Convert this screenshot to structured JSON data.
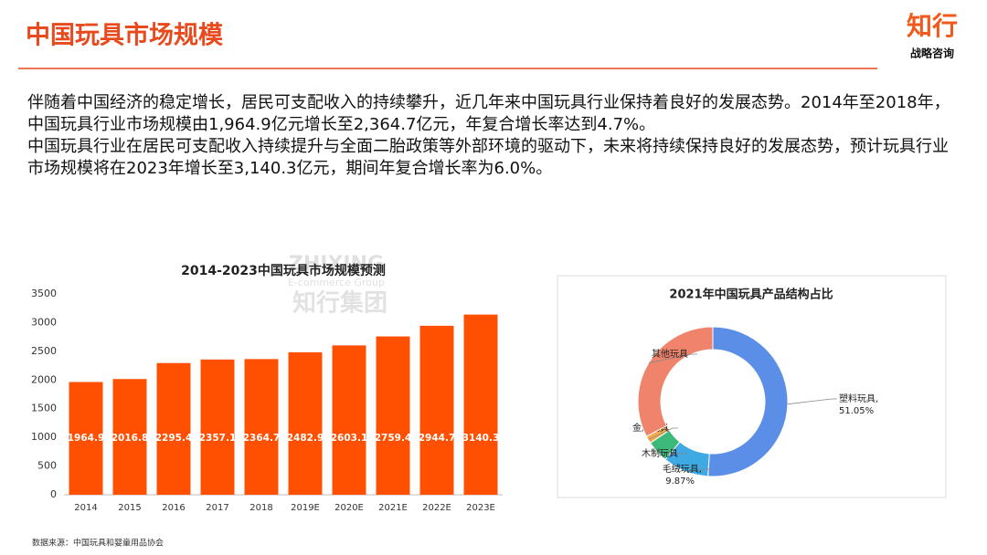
{
  "header": {
    "title": "中国玩具市场规模",
    "logo_main": "知行",
    "logo_sub": "战略咨询"
  },
  "body": [
    "伴随着中国经济的稳定增长，居民可支配收入的持续攀升，近几年来中国玩具行业保持着良好的发展态势。2014年至2018年，中国玩具行业市场规模由1,964.9亿元增长至2,364.7亿元，年复合增长率达到4.7%。",
    "中国玩具行业在居民可支配收入持续提升与全面二胎政策等外部环境的驱动下，未来将持续保持良好的发展态势，预计玩具行业市场规模将在2023年增长至3,140.3亿元，期间年复合增长率为6.0%。"
  ],
  "watermark": [
    "ZHIXING",
    "E-commerce Group",
    "知行集团"
  ],
  "source": "数据来源：中国玩具和婴童用品协会",
  "chart_data": [
    {
      "type": "bar",
      "title": "2014-2023中国玩具市场规模预测",
      "categories": [
        "2014",
        "2015",
        "2016",
        "2017",
        "2018",
        "2019E",
        "2020E",
        "2021E",
        "2022E",
        "2023E"
      ],
      "values": [
        1964.9,
        2016.8,
        2295.4,
        2357.1,
        2364.7,
        2482.9,
        2603.1,
        2759.4,
        2944.7,
        3140.3
      ],
      "color": "#fe5000",
      "ylim": [
        0,
        3500
      ],
      "yticks": [
        0,
        500,
        1000,
        1500,
        2000,
        2500,
        3000,
        3500
      ],
      "grid": false
    },
    {
      "type": "donut",
      "title": "2021年中国玩具产品结构占比",
      "categories": [
        "塑料玩具,",
        "毛绒玩具,",
        "木制玩具",
        "金属玩具",
        "其他玩具"
      ],
      "values": [
        51.05,
        9.87,
        4.8,
        1.6,
        32.68
      ],
      "value_labels": [
        "51.05%",
        "9.87%",
        null,
        null,
        null
      ],
      "colors": [
        "#5b8ee6",
        "#3ea9e2",
        "#3dba7a",
        "#f6ab4a",
        "#f0836b"
      ]
    }
  ]
}
